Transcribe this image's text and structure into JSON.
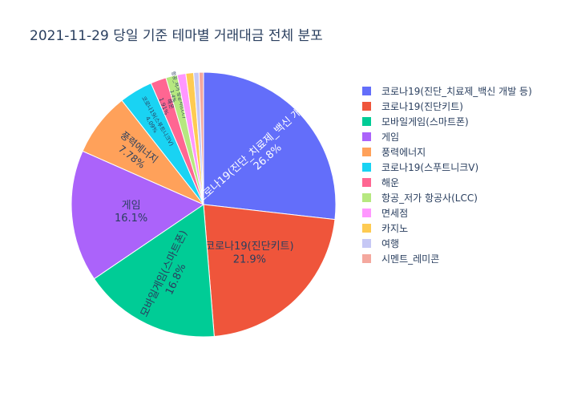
{
  "chart_data": {
    "type": "pie",
    "title": "2021-11-29 당일 기준 테마별 거래대금 전체 분포",
    "slices": [
      {
        "label": "코로나19(진단_치료제_백신 개발 등)",
        "value": 26.8,
        "text": "26.8%",
        "color": "#636efa",
        "text_color": "#ffffff"
      },
      {
        "label": "코로나19(진단키트)",
        "value": 21.9,
        "text": "21.9%",
        "color": "#ef553b",
        "text_color": "#2a3f5f"
      },
      {
        "label": "모바일게임(스마트폰)",
        "value": 16.8,
        "text": "16.8%",
        "color": "#00cc96",
        "text_color": "#2a3f5f"
      },
      {
        "label": "게임",
        "value": 16.1,
        "text": "16.1%",
        "color": "#ab63fa",
        "text_color": "#2a3f5f"
      },
      {
        "label": "풍력에너지",
        "value": 7.78,
        "text": "7.78%",
        "color": "#ffa15a",
        "text_color": "#2a3f5f"
      },
      {
        "label": "코로나19(스푸트니크V)",
        "value": 4.09,
        "text": "4.09%",
        "color": "#19d3f3",
        "text_color": "#2a3f5f"
      },
      {
        "label": "해운",
        "value": 1.91,
        "text": "1.91%",
        "color": "#ff6692",
        "text_color": "#2a3f5f"
      },
      {
        "label": "항공_저가 항공사(LCC)",
        "value": 1.4,
        "text": "1.4%",
        "color": "#b6e880",
        "text_color": "#2a3f5f"
      },
      {
        "label": "면세점",
        "value": 1.05,
        "text": "",
        "color": "#ff97ff",
        "text_color": "#2a3f5f"
      },
      {
        "label": "카지노",
        "value": 0.95,
        "text": "",
        "color": "#fecb52",
        "text_color": "#2a3f5f"
      },
      {
        "label": "여행",
        "value": 0.65,
        "text": "",
        "color": "#c6c8f5",
        "text_color": "#2a3f5f"
      },
      {
        "label": "시멘트_레미콘",
        "value": 0.55,
        "text": "",
        "color": "#f4a89e",
        "text_color": "#2a3f5f"
      }
    ]
  }
}
